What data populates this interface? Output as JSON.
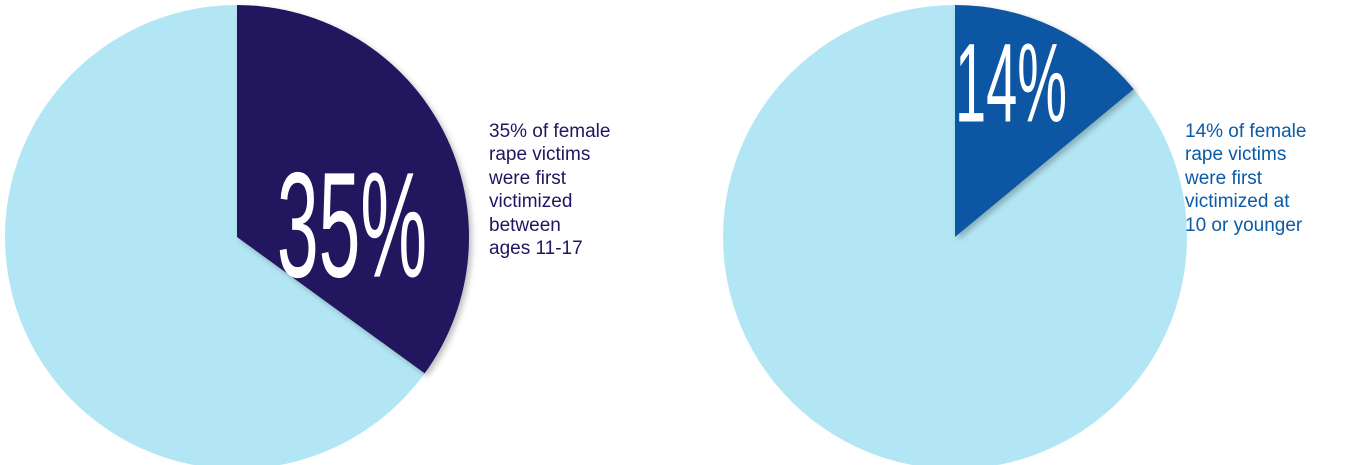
{
  "chart_data": [
    {
      "type": "pie",
      "values": [
        35,
        65
      ],
      "highlight_label": "35%",
      "caption_lines": [
        "35% of female",
        "rape victims",
        "were first",
        "victimized",
        "between",
        "ages 11-17"
      ],
      "colors": {
        "highlight": "#22145e",
        "rest": "#b3e6f4"
      }
    },
    {
      "type": "pie",
      "values": [
        14,
        86
      ],
      "highlight_label": "14%",
      "caption_lines": [
        "14% of female",
        "rape victims",
        "were first",
        "victimized at",
        "10 or younger"
      ],
      "colors": {
        "highlight": "#0a57a4",
        "rest": "#b3e6f4"
      }
    }
  ]
}
